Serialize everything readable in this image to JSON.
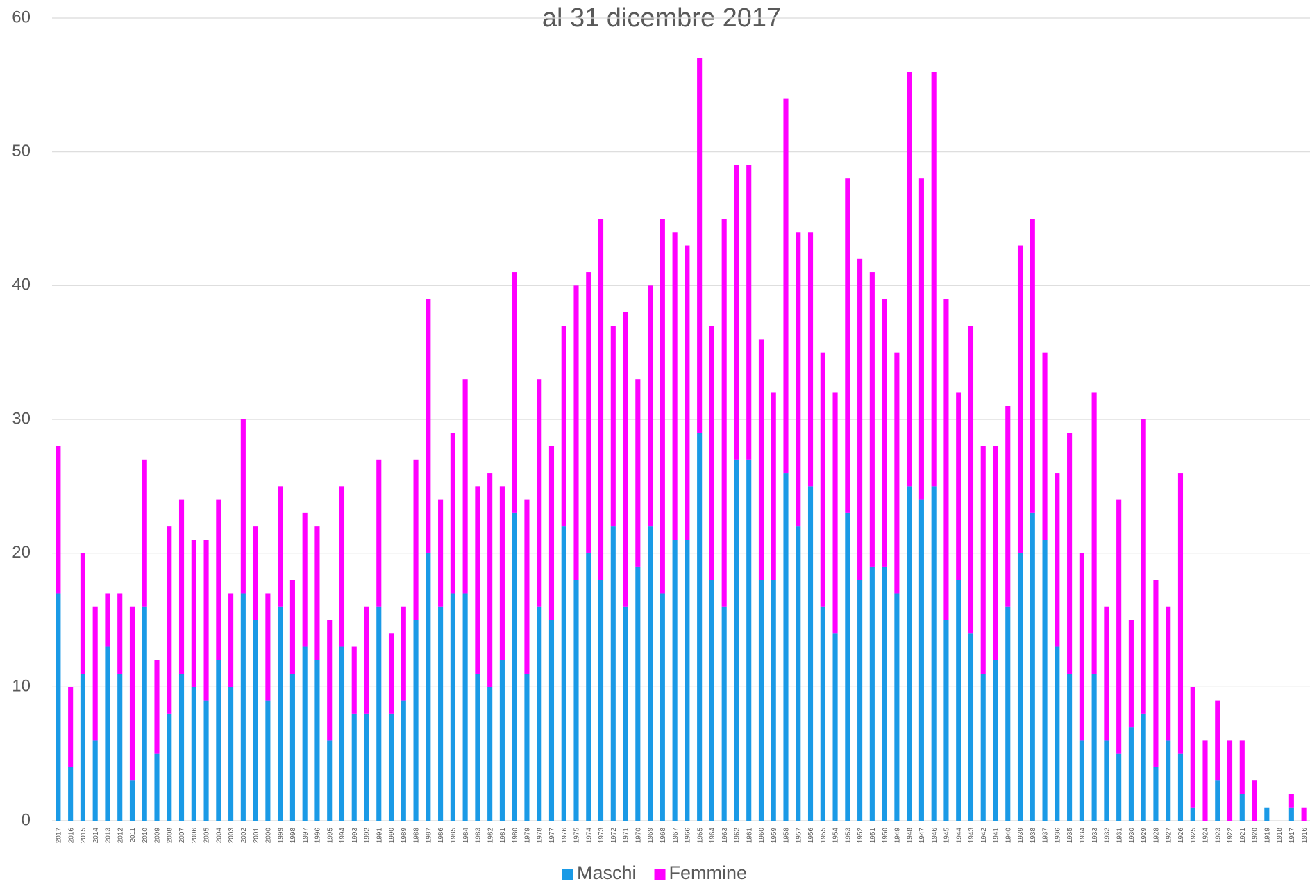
{
  "chart_data": {
    "type": "stacked-bar",
    "title": "al 31 dicembre 2017",
    "categories": [
      "2017",
      "2016",
      "2015",
      "2014",
      "2013",
      "2012",
      "2011",
      "2010",
      "2009",
      "2008",
      "2007",
      "2006",
      "2005",
      "2004",
      "2003",
      "2002",
      "2001",
      "2000",
      "1999",
      "1998",
      "1997",
      "1996",
      "1995",
      "1994",
      "1993",
      "1992",
      "1991",
      "1990",
      "1989",
      "1988",
      "1987",
      "1986",
      "1985",
      "1984",
      "1983",
      "1982",
      "1981",
      "1980",
      "1979",
      "1978",
      "1977",
      "1976",
      "1975",
      "1974",
      "1973",
      "1972",
      "1971",
      "1970",
      "1969",
      "1968",
      "1967",
      "1966",
      "1965",
      "1964",
      "1963",
      "1962",
      "1961",
      "1960",
      "1959",
      "1958",
      "1957",
      "1956",
      "1955",
      "1954",
      "1953",
      "1952",
      "1951",
      "1950",
      "1949",
      "1948",
      "1947",
      "1946",
      "1945",
      "1944",
      "1943",
      "1942",
      "1941",
      "1940",
      "1939",
      "1938",
      "1937",
      "1936",
      "1935",
      "1934",
      "1933",
      "1932",
      "1931",
      "1930",
      "1929",
      "1928",
      "1927",
      "1926",
      "1925",
      "1924",
      "1923",
      "1922",
      "1921",
      "1920",
      "1919",
      "1918",
      "1917",
      "1916"
    ],
    "series": [
      {
        "name": "Maschi",
        "color": "#1a9ae6",
        "values": [
          17,
          4,
          11,
          6,
          13,
          11,
          3,
          16,
          5,
          8,
          11,
          10,
          9,
          12,
          10,
          17,
          15,
          9,
          16,
          11,
          13,
          12,
          6,
          13,
          8,
          8,
          16,
          8,
          9,
          15,
          20,
          16,
          17,
          17,
          11,
          10,
          12,
          23,
          11,
          16,
          15,
          22,
          18,
          20,
          18,
          22,
          16,
          19,
          22,
          17,
          21,
          21,
          29,
          18,
          16,
          27,
          27,
          18,
          18,
          26,
          22,
          25,
          16,
          14,
          23,
          18,
          19,
          19,
          17,
          25,
          24,
          25,
          15,
          18,
          14,
          11,
          12,
          16,
          20,
          23,
          21,
          13,
          11,
          6,
          11,
          6,
          5,
          7,
          8,
          4,
          6,
          5,
          1,
          0,
          3,
          0,
          2,
          0,
          1,
          0,
          1,
          0
        ]
      },
      {
        "name": "Femmine",
        "color": "#ff00ff",
        "values": [
          11,
          6,
          9,
          10,
          4,
          6,
          13,
          11,
          7,
          14,
          13,
          11,
          12,
          12,
          7,
          13,
          7,
          8,
          9,
          7,
          10,
          10,
          9,
          12,
          5,
          8,
          11,
          6,
          7,
          12,
          19,
          8,
          12,
          16,
          14,
          16,
          13,
          18,
          13,
          17,
          13,
          15,
          22,
          21,
          27,
          15,
          22,
          14,
          18,
          28,
          23,
          22,
          28,
          19,
          29,
          22,
          22,
          18,
          14,
          28,
          22,
          19,
          19,
          18,
          25,
          24,
          22,
          20,
          18,
          31,
          24,
          31,
          24,
          14,
          23,
          17,
          16,
          15,
          23,
          22,
          14,
          13,
          18,
          14,
          21,
          10,
          19,
          8,
          22,
          14,
          10,
          21,
          9,
          6,
          6,
          6,
          4,
          3,
          0,
          0,
          1,
          1
        ]
      }
    ],
    "ylim": [
      0,
      60
    ],
    "yticks": [
      0,
      10,
      20,
      30,
      40,
      50,
      60
    ],
    "grid": true,
    "legend": "bottom"
  }
}
